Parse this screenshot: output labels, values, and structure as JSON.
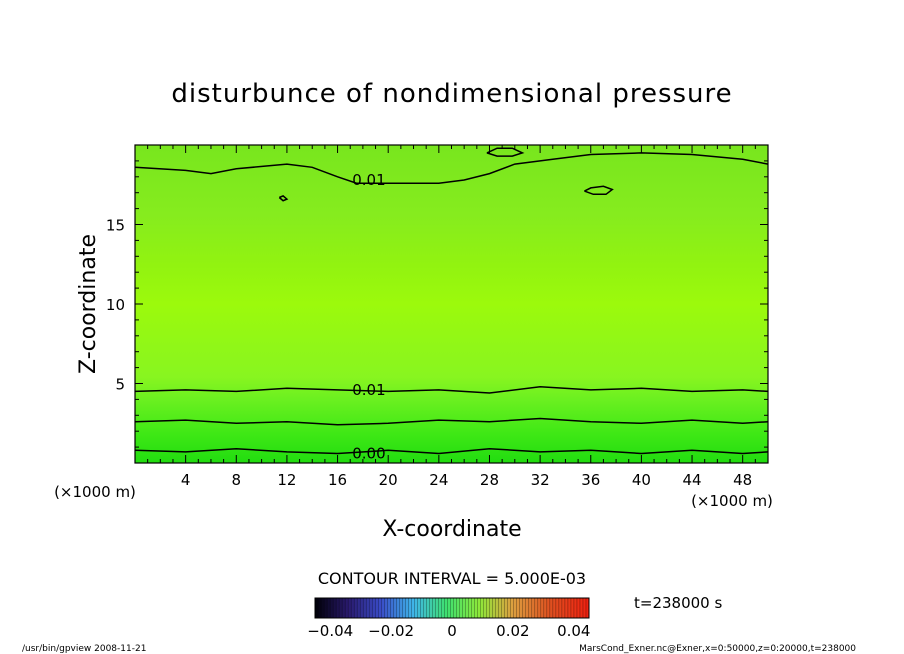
{
  "chart_data": {
    "type": "heatmap",
    "title": "disturbunce of nondimensional pressure",
    "xlabel": "X-coordinate",
    "ylabel": "Z-coordinate",
    "x_unit": "(×1000 m)",
    "y_unit": "(×1000 m)",
    "xlim": [
      0,
      50
    ],
    "ylim": [
      0,
      20
    ],
    "x_ticks": [
      4,
      8,
      12,
      16,
      20,
      24,
      28,
      32,
      36,
      40,
      44,
      48
    ],
    "y_ticks": [
      5,
      10,
      15
    ],
    "contour_interval_text": "CONTOUR INTERVAL = 5.000E-03",
    "time_label": "t=238000 s",
    "colorbar": {
      "range": [
        -0.045,
        0.045
      ],
      "tick_values": [
        -0.04,
        -0.02,
        0,
        0.02,
        0.04
      ],
      "tick_labels": [
        "−0.04",
        "−0.02",
        "0",
        "0.02",
        "0.04"
      ]
    },
    "contours": [
      {
        "level": 0.0,
        "label": "0.00",
        "label_x": 17.0,
        "label_y": 0.6,
        "points": [
          [
            0,
            0.8
          ],
          [
            4,
            0.7
          ],
          [
            8,
            0.9
          ],
          [
            12,
            0.7
          ],
          [
            16,
            0.6
          ],
          [
            20,
            0.8
          ],
          [
            24,
            0.6
          ],
          [
            28,
            0.9
          ],
          [
            32,
            0.7
          ],
          [
            36,
            0.8
          ],
          [
            40,
            0.6
          ],
          [
            44,
            0.8
          ],
          [
            48,
            0.6
          ],
          [
            50,
            0.7
          ]
        ]
      },
      {
        "level": 0.005,
        "label": "",
        "label_x": 0,
        "label_y": 0,
        "points": [
          [
            0,
            2.6
          ],
          [
            4,
            2.7
          ],
          [
            8,
            2.5
          ],
          [
            12,
            2.6
          ],
          [
            16,
            2.4
          ],
          [
            20,
            2.5
          ],
          [
            24,
            2.7
          ],
          [
            28,
            2.6
          ],
          [
            32,
            2.8
          ],
          [
            36,
            2.6
          ],
          [
            40,
            2.5
          ],
          [
            44,
            2.7
          ],
          [
            48,
            2.5
          ],
          [
            50,
            2.6
          ]
        ]
      },
      {
        "level": 0.01,
        "label": "0.01",
        "label_x": 17.0,
        "label_y": 4.6,
        "points": [
          [
            0,
            4.5
          ],
          [
            4,
            4.6
          ],
          [
            8,
            4.5
          ],
          [
            12,
            4.7
          ],
          [
            16,
            4.6
          ],
          [
            20,
            4.5
          ],
          [
            24,
            4.6
          ],
          [
            28,
            4.4
          ],
          [
            32,
            4.8
          ],
          [
            36,
            4.6
          ],
          [
            40,
            4.7
          ],
          [
            44,
            4.5
          ],
          [
            48,
            4.6
          ],
          [
            50,
            4.5
          ]
        ]
      },
      {
        "level": 0.01,
        "label": "0.01",
        "label_x": 17.0,
        "label_y": 17.8,
        "points": [
          [
            0,
            18.6
          ],
          [
            4,
            18.4
          ],
          [
            6,
            18.2
          ],
          [
            8,
            18.5
          ],
          [
            12,
            18.8
          ],
          [
            14,
            18.6
          ],
          [
            16,
            18.0
          ],
          [
            17.5,
            17.6
          ],
          [
            20,
            17.6
          ],
          [
            24,
            17.6
          ],
          [
            26,
            17.8
          ],
          [
            28,
            18.2
          ],
          [
            30,
            18.8
          ],
          [
            33,
            19.1
          ],
          [
            36,
            19.4
          ],
          [
            40,
            19.5
          ],
          [
            44,
            19.4
          ],
          [
            48,
            19.1
          ],
          [
            50,
            18.8
          ]
        ]
      },
      {
        "level": 0.01,
        "label": "",
        "label_x": 0,
        "label_y": 0,
        "points": [
          [
            27.8,
            19.5
          ],
          [
            28.6,
            19.3
          ],
          [
            29.8,
            19.3
          ],
          [
            30.6,
            19.5
          ],
          [
            29.8,
            19.8
          ],
          [
            28.6,
            19.8
          ],
          [
            27.8,
            19.5
          ]
        ]
      },
      {
        "level": 0.01,
        "label": "",
        "label_x": 0,
        "label_y": 0,
        "points": [
          [
            35.5,
            17.1
          ],
          [
            36.2,
            16.9
          ],
          [
            37.2,
            16.9
          ],
          [
            37.7,
            17.2
          ],
          [
            37.0,
            17.4
          ],
          [
            36.0,
            17.3
          ],
          [
            35.5,
            17.1
          ]
        ]
      },
      {
        "level": 0.01,
        "label": "",
        "label_x": 0,
        "label_y": 0,
        "points": [
          [
            11.4,
            16.7
          ],
          [
            11.7,
            16.5
          ],
          [
            12.0,
            16.6
          ],
          [
            11.7,
            16.8
          ],
          [
            11.4,
            16.7
          ]
        ]
      }
    ]
  },
  "footer": {
    "left": "/usr/bin/gpview   2008-11-21",
    "right": "MarsCond_Exner.nc@Exner,x=0:50000,z=0:20000,t=238000"
  }
}
